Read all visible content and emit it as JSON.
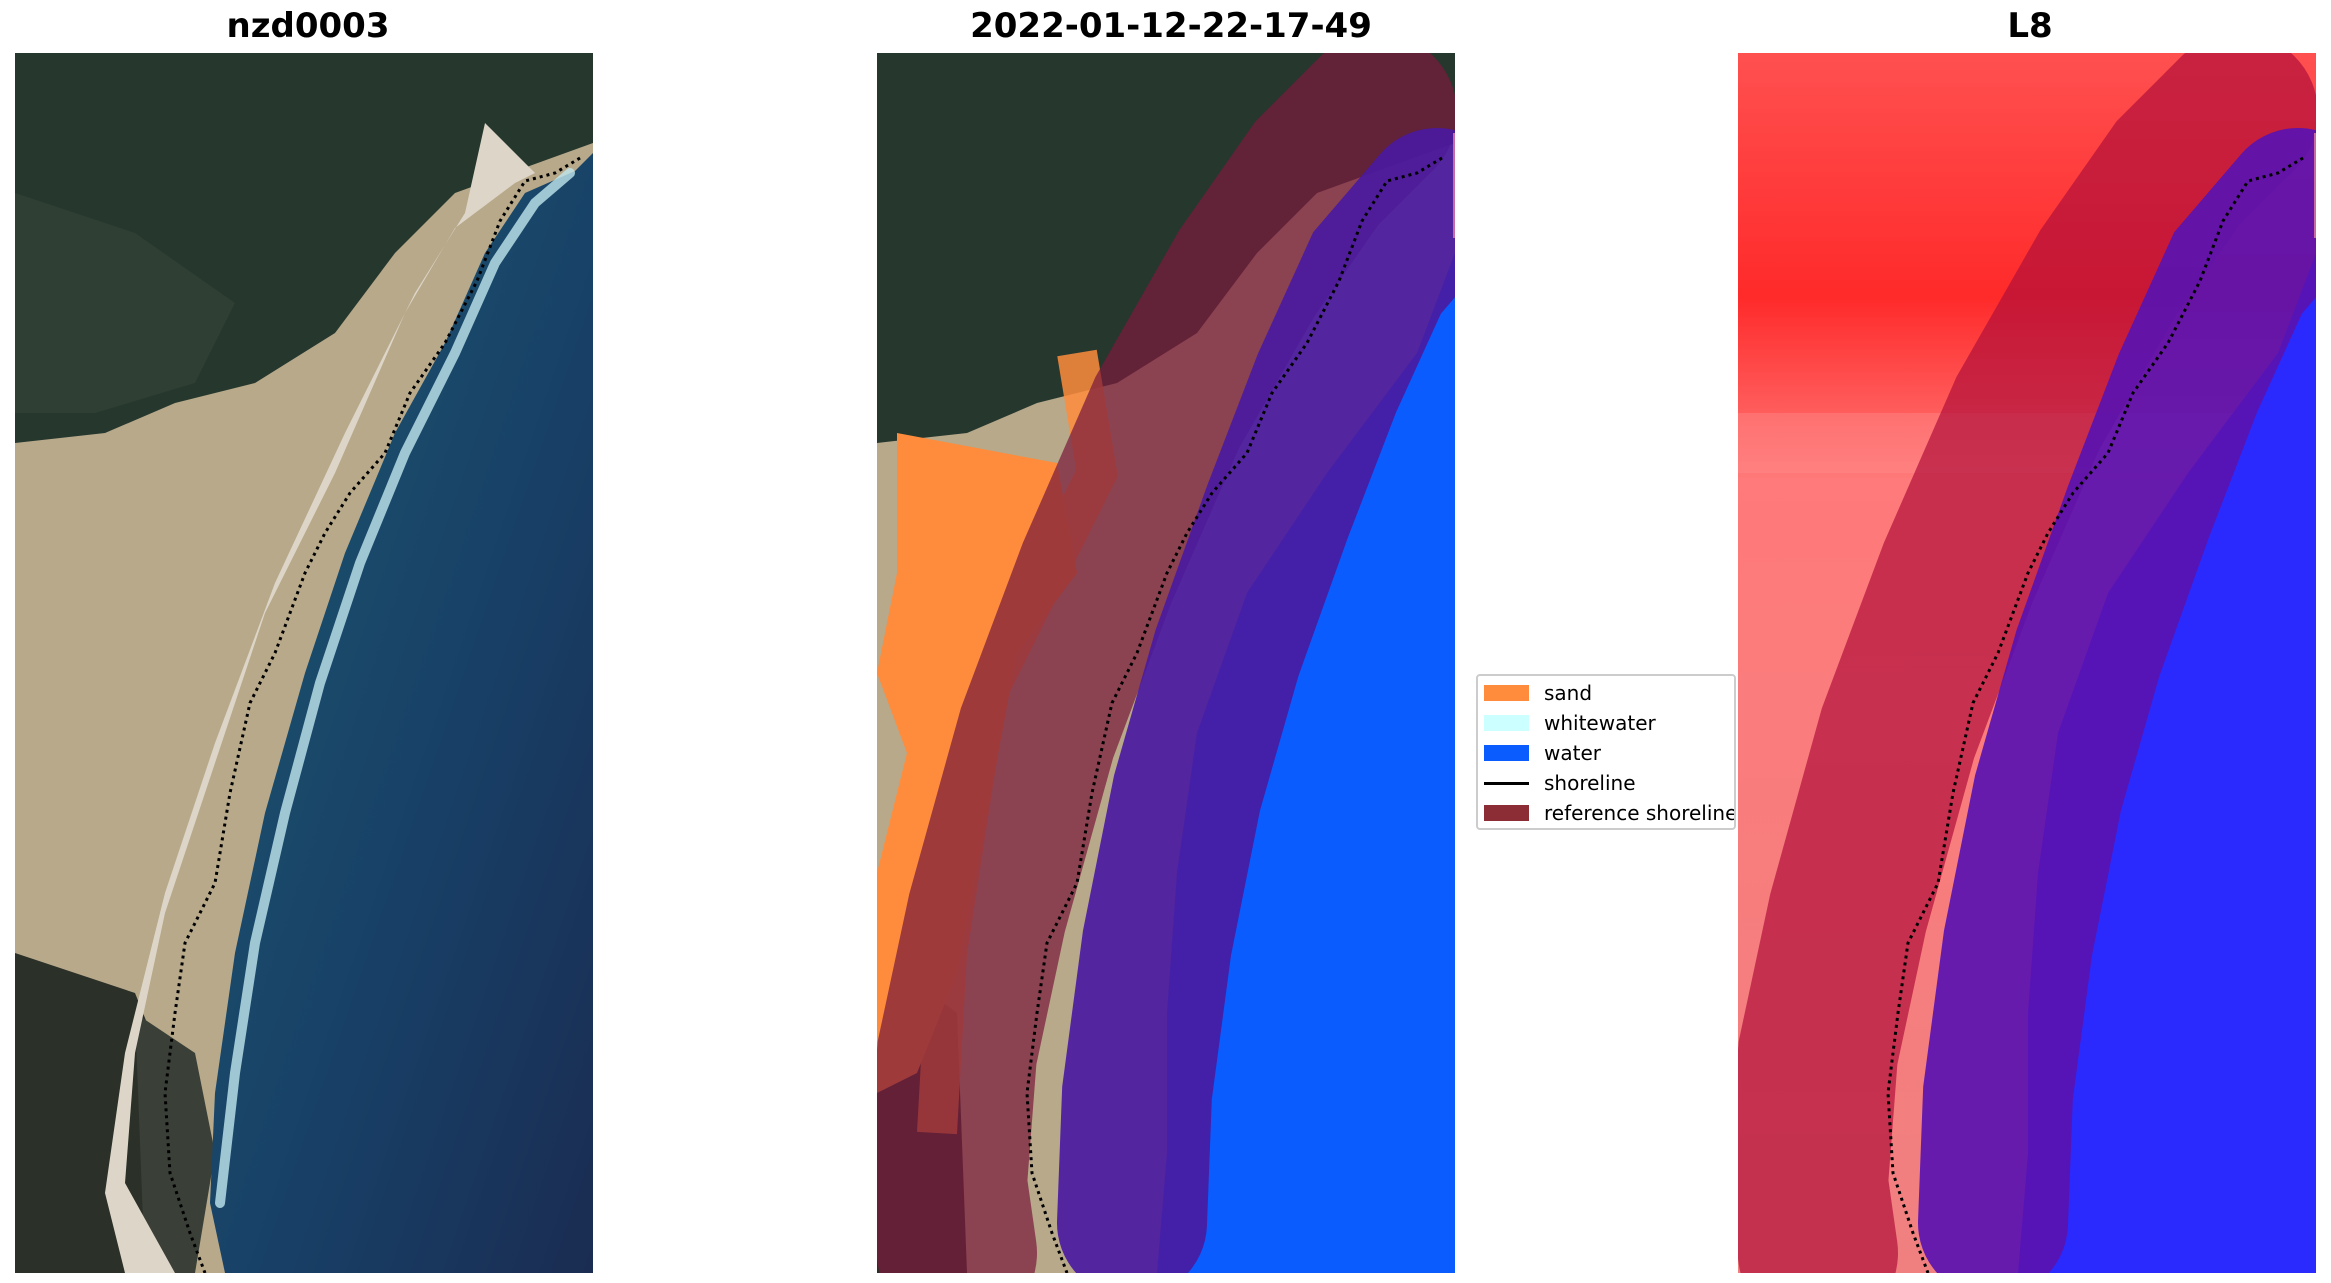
{
  "figure": {
    "panels": [
      {
        "title": "nzd0003",
        "kind": "rgb-image"
      },
      {
        "title": "2022-01-12-22-17-49",
        "kind": "classified-image"
      },
      {
        "title": "L8",
        "kind": "mndwi-image"
      }
    ],
    "legend": {
      "placement": "center-right of middle panel",
      "items": [
        {
          "label": "sand",
          "color": "#ff8c3c",
          "symbol": "patch"
        },
        {
          "label": "whitewater",
          "color": "#ccffff",
          "symbol": "patch"
        },
        {
          "label": "water",
          "color": "#0a5cff",
          "symbol": "patch"
        },
        {
          "label": "shoreline",
          "color": "#000000",
          "symbol": "line"
        },
        {
          "label": "reference shoreline",
          "color": "#8c2d36",
          "symbol": "patch"
        }
      ]
    },
    "colors": {
      "shoreline": "#000000",
      "reference_buffer": "#8c2d36",
      "sand": "#ff8c3c",
      "water": "#0a5cff",
      "land_index": "#ff2020",
      "water_index": "#2020ff"
    }
  }
}
